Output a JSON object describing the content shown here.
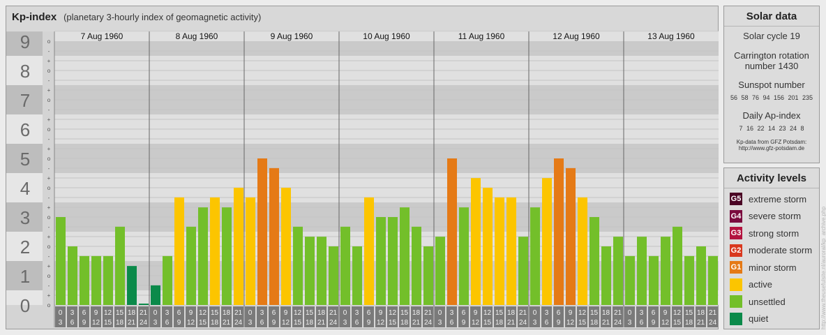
{
  "header": {
    "title": "Kp-index",
    "subtitle": "(planetary 3-hourly index of geomagnetic activity)"
  },
  "chart_data": {
    "type": "bar",
    "title": "Kp-index",
    "subtitle": "(planetary 3-hourly index of geomagnetic activity)",
    "days": [
      "7 Aug 1960",
      "8 Aug 1960",
      "9 Aug 1960",
      "10 Aug 1960",
      "11 Aug 1960",
      "12 Aug 1960",
      "13 Aug 1960"
    ],
    "interval_start_hours": [
      "0",
      "3",
      "6",
      "9",
      "12",
      "15",
      "18",
      "21"
    ],
    "interval_end_hours": [
      "3",
      "6",
      "9",
      "12",
      "15",
      "18",
      "21",
      "24"
    ],
    "y_ticks": [
      "0",
      "1",
      "2",
      "3",
      "4",
      "5",
      "6",
      "7",
      "8",
      "9"
    ],
    "y_minor_ticks": [
      "o",
      "+",
      "-"
    ],
    "ylim": [
      0,
      9.33
    ],
    "values": [
      3.0,
      2.0,
      1.67,
      1.67,
      1.67,
      2.67,
      1.33,
      0.0,
      0.67,
      1.67,
      3.67,
      2.67,
      3.33,
      3.67,
      3.33,
      4.0,
      3.67,
      5.0,
      4.67,
      4.0,
      2.67,
      2.33,
      2.33,
      2.0,
      2.67,
      2.0,
      3.67,
      3.0,
      3.0,
      3.33,
      2.67,
      2.0,
      2.33,
      5.0,
      3.33,
      4.33,
      4.0,
      3.67,
      3.67,
      2.33,
      3.33,
      4.33,
      5.0,
      4.67,
      3.67,
      3.0,
      2.0,
      2.33,
      1.67,
      2.33,
      1.67,
      2.33,
      2.67,
      1.67,
      2.0,
      1.67
    ],
    "grid": true,
    "colors": {
      "quiet": "#0b8a4a",
      "unsettled": "#73bf2a",
      "active": "#fcc500",
      "minor_storm": "#e57a16",
      "moderate_storm": "#d9381e",
      "strong_storm": "#b3133f",
      "severe_storm": "#7a0b3e",
      "extreme_storm": "#4a0424",
      "hour_box": "#7a7a7a",
      "band_dark": "#cacaca",
      "band_light": "#e0e0e0"
    }
  },
  "solar": {
    "title": "Solar data",
    "cycle": "Solar cycle 19",
    "carrington_line1": "Carrington rotation",
    "carrington_line2": "number 1430",
    "sunspot_title": "Sunspot number",
    "sunspot_values": "56 58 76 94 156 201 235",
    "ap_title": "Daily Ap-index",
    "ap_values": "7 16 22 14 23 24 8",
    "source_line1": "Kp-data from GFZ Potsdam:",
    "source_line2": "http://www.gfz-potsdam.de"
  },
  "levels": {
    "title": "Activity levels",
    "items": [
      {
        "code": "G5",
        "label": "extreme storm",
        "color": "#4a0424"
      },
      {
        "code": "G4",
        "label": "severe storm",
        "color": "#7a0b3e"
      },
      {
        "code": "G3",
        "label": "strong storm",
        "color": "#b3133f"
      },
      {
        "code": "G2",
        "label": "moderate storm",
        "color": "#d9381e"
      },
      {
        "code": "G1",
        "label": "minor storm",
        "color": "#e57a16"
      },
      {
        "code": "",
        "label": "active",
        "color": "#fcc500"
      },
      {
        "code": "",
        "label": "unsettled",
        "color": "#73bf2a"
      },
      {
        "code": "",
        "label": "quiet",
        "color": "#0b8a4a"
      }
    ]
  },
  "watermark": "http://www.theusefulsite.nl/auroral/kp_archive.php"
}
